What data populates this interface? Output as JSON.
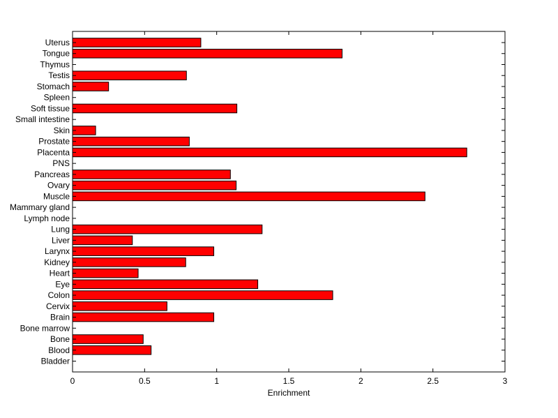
{
  "chart_data": {
    "type": "bar",
    "orientation": "horizontal",
    "title": "",
    "xlabel": "Enrichment",
    "ylabel": "",
    "xlim": [
      0,
      3
    ],
    "xticks": [
      0,
      0.5,
      1,
      1.5,
      2,
      2.5,
      3
    ],
    "xtick_labels": [
      "0",
      "0.5",
      "1",
      "1.5",
      "2",
      "2.5",
      "3"
    ],
    "grid": false,
    "bar_color": "#ff0000",
    "bar_edge_color": "#000000",
    "categories": [
      "Bladder",
      "Blood",
      "Bone",
      "Bone marrow",
      "Brain",
      "Cervix",
      "Colon",
      "Eye",
      "Heart",
      "Kidney",
      "Larynx",
      "Liver",
      "Lung",
      "Lymph node",
      "Mammary gland",
      "Muscle",
      "Ovary",
      "Pancreas",
      "PNS",
      "Placenta",
      "Prostate",
      "Skin",
      "Small intestine",
      "Soft tissue",
      "Spleen",
      "Stomach",
      "Testis",
      "Thymus",
      "Tongue",
      "Uterus"
    ],
    "values": [
      0,
      0.545,
      0.49,
      0,
      0.98,
      0.655,
      1.805,
      1.285,
      0.455,
      0.785,
      0.98,
      0.415,
      1.315,
      0,
      0,
      2.445,
      1.135,
      1.095,
      0,
      2.735,
      0.81,
      0.16,
      0,
      1.14,
      0,
      0.25,
      0.79,
      0,
      1.87,
      0.89
    ]
  }
}
